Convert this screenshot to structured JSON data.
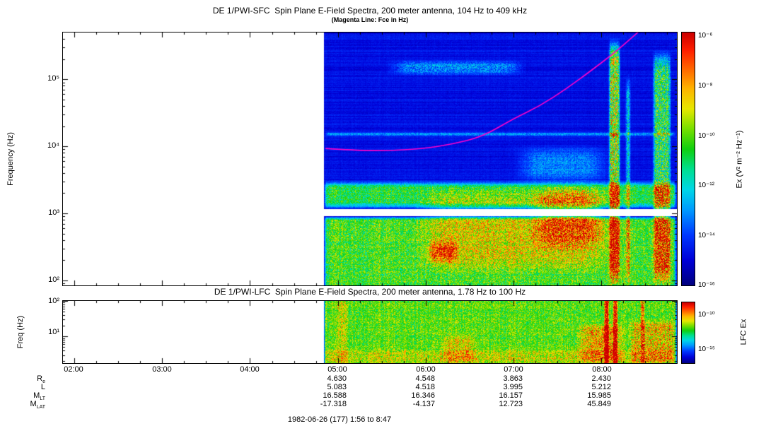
{
  "header": {
    "title": "DE 1/PWI-SFC  Spin Plane E-Field Spectra, 200 meter antenna, 104 Hz to 409 kHz",
    "subtitle": "(Magenta Line: Fce in Hz)"
  },
  "sfc": {
    "ylabel": "Frequency (Hz)",
    "yticks": [
      "10⁵",
      "10⁴",
      "10³",
      "10²"
    ],
    "colorbar": {
      "label": "Ex (V² m⁻² Hz⁻¹)",
      "ticks": [
        "10⁻⁶",
        "10⁻⁸",
        "10⁻¹⁰",
        "10⁻¹²",
        "10⁻¹⁴",
        "10⁻¹⁶"
      ]
    }
  },
  "lfc": {
    "title": "DE 1/PWI-LFC  Spin Plane E-Field Spectra, 200 meter antenna, 1.78 Hz to 100 Hz",
    "ylabel": "Freq (Hz)",
    "yticks": [
      "10²",
      "10¹"
    ],
    "colorbar": {
      "label": "LFC Ex",
      "ticks": [
        "10⁻¹⁰",
        "10⁻¹⁵"
      ]
    }
  },
  "xaxis": {
    "ticks": [
      "02:00",
      "03:00",
      "04:00",
      "05:00",
      "06:00",
      "07:00",
      "08:00"
    ]
  },
  "ephemeris": {
    "rows": [
      {
        "label_main": "R",
        "label_sub": "e",
        "values": [
          "4.630",
          "4.548",
          "3.863",
          "2.430"
        ]
      },
      {
        "label_main": "L",
        "label_sub": "",
        "values": [
          "5.083",
          "4.518",
          "3.995",
          "5.212"
        ]
      },
      {
        "label_main": "M",
        "label_sub": "LT",
        "values": [
          "16.588",
          "16.346",
          "16.157",
          "15.985"
        ]
      },
      {
        "label_main": "M",
        "label_sub": "LAT",
        "values": [
          "-17.318",
          "-4.137",
          "12.723",
          "45.849"
        ]
      }
    ]
  },
  "caption": "1982-06-26 (177) 1:56 to 8:47",
  "colormap": {
    "stops": [
      [
        0.0,
        "#00007d"
      ],
      [
        0.1,
        "#0000d8"
      ],
      [
        0.2,
        "#0038ff"
      ],
      [
        0.3,
        "#009cff"
      ],
      [
        0.38,
        "#00d8e8"
      ],
      [
        0.46,
        "#00e090"
      ],
      [
        0.54,
        "#10d010"
      ],
      [
        0.62,
        "#78e000"
      ],
      [
        0.7,
        "#e8e800"
      ],
      [
        0.78,
        "#ffb400"
      ],
      [
        0.86,
        "#ff6400"
      ],
      [
        0.93,
        "#ff2000"
      ],
      [
        1.0,
        "#cc0000"
      ]
    ]
  },
  "chart_data": [
    {
      "type": "heatmap",
      "panel": "SFC",
      "title": "DE 1/PWI-SFC  Spin Plane E-Field Spectra, 200 meter antenna, 104 Hz to 409 kHz",
      "subtitle": "(Magenta Line: Fce in Hz)",
      "x_axis": {
        "units": "UT hours",
        "tick_labels": [
          "02:00",
          "03:00",
          "04:00",
          "05:00",
          "06:00",
          "07:00",
          "08:00"
        ],
        "time_span_label": "1:56 to 8:47"
      },
      "y_axis": {
        "label": "Frequency (Hz)",
        "scale": "log",
        "ticks_hz": [
          100,
          1000,
          10000,
          100000
        ]
      },
      "z_axis": {
        "label": "Ex (V² m⁻² Hz⁻¹)",
        "scale": "log",
        "min": 1e-16,
        "max": 1e-06,
        "tick_labels": [
          "10⁻⁶",
          "10⁻⁸",
          "10⁻¹⁰",
          "10⁻¹²",
          "10⁻¹⁴",
          "10⁻¹⁶"
        ]
      },
      "x_range_hours": [
        1.87,
        8.86
      ],
      "y_range_hz": [
        84,
        500000
      ],
      "data_start_hour": 4.84,
      "white_gap_hz": [
        900,
        1150
      ],
      "base": 0.1,
      "base_noise": 0.05,
      "row_noise": 0.03,
      "overlay_line": {
        "name": "Fce",
        "color": "#ff00cc",
        "points": [
          [
            4.86,
            9300
          ],
          [
            5.2,
            8700
          ],
          [
            5.55,
            8600
          ],
          [
            5.95,
            9200
          ],
          [
            6.3,
            10700
          ],
          [
            6.65,
            14000
          ],
          [
            7.0,
            26000
          ],
          [
            7.3,
            40000
          ],
          [
            7.6,
            72000
          ],
          [
            7.9,
            140000
          ],
          [
            8.15,
            250000
          ],
          [
            8.33,
            400000
          ],
          [
            8.45,
            550000
          ]
        ]
      },
      "features": [
        {
          "t0": 4.84,
          "t1": 8.86,
          "f0": 75,
          "f1": 900,
          "amp": 0.44,
          "st": 0.04,
          "sf": 0.05,
          "speckle": 0.3
        },
        {
          "t0": 4.84,
          "t1": 8.86,
          "f0": 1150,
          "f1": 3100,
          "amp": 0.4,
          "st": 0.04,
          "sf": 0.1,
          "speckle": 0.3
        },
        {
          "t0": 5.85,
          "t1": 8.18,
          "f0": 120,
          "f1": 2600,
          "amp": 0.14,
          "st": 0.35,
          "sf": 0.25,
          "speckle": 0.3
        },
        {
          "t0": 7.15,
          "t1": 8.1,
          "f0": 260,
          "f1": 2900,
          "amp": 0.22,
          "st": 0.25,
          "sf": 0.25,
          "speckle": 0.5
        },
        {
          "t0": 6.02,
          "t1": 6.38,
          "f0": 170,
          "f1": 430,
          "amp": 0.26,
          "st": 0.08,
          "sf": 0.15,
          "speckle": 0.3
        },
        {
          "t0": 4.84,
          "t1": 8.86,
          "f0": 14000,
          "f1": 16500,
          "amp": 0.2,
          "st": 0.05,
          "sf": 0.03,
          "speckle": 0.4
        },
        {
          "t0": 5.55,
          "t1": 7.15,
          "f0": 110000,
          "f1": 200000,
          "amp": 0.17,
          "st": 0.25,
          "sf": 0.1,
          "speckle": 0.7
        },
        {
          "t0": 7.0,
          "t1": 8.12,
          "f0": 2600,
          "f1": 11000,
          "amp": 0.15,
          "st": 0.25,
          "sf": 0.2,
          "speckle": 0.5
        },
        {
          "t0": 8.08,
          "t1": 8.22,
          "f0": 80,
          "f1": 420000,
          "amp": 0.5,
          "st": 0.03,
          "sf": 0.3,
          "speckle": 0.55
        },
        {
          "t0": 8.27,
          "t1": 8.34,
          "f0": 80,
          "f1": 120000,
          "amp": 0.26,
          "st": 0.03,
          "sf": 0.3,
          "speckle": 0.6
        },
        {
          "t0": 8.58,
          "t1": 8.8,
          "f0": 80,
          "f1": 280000,
          "amp": 0.38,
          "st": 0.04,
          "sf": 0.3,
          "speckle": 0.6
        }
      ]
    },
    {
      "type": "heatmap",
      "panel": "LFC",
      "title": "DE 1/PWI-LFC  Spin Plane E-Field Spectra, 200 meter antenna, 1.78 Hz to 100 Hz",
      "x_axis": {
        "units": "UT hours",
        "tick_labels": [
          "02:00",
          "03:00",
          "04:00",
          "05:00",
          "06:00",
          "07:00",
          "08:00"
        ],
        "time_span_label": "1:56 to 8:47"
      },
      "y_axis": {
        "label": "Freq (Hz)",
        "scale": "log",
        "ticks_hz": [
          10,
          100
        ]
      },
      "z_axis": {
        "label": "LFC Ex",
        "scale": "log",
        "tick_labels": [
          "10⁻¹⁰",
          "10⁻¹⁵"
        ]
      },
      "x_range_hours": [
        1.87,
        8.86
      ],
      "y_range_hz": [
        1.78,
        100
      ],
      "data_start_hour": 4.84,
      "base": 0.1,
      "base_noise": 0.07,
      "row_noise": 0.02,
      "features": [
        {
          "t0": 4.84,
          "t1": 8.86,
          "f0": 1.6,
          "f1": 110,
          "amp": 0.45,
          "st": 0.02,
          "sf": 0.01,
          "speckle": 0.25
        },
        {
          "t0": 4.84,
          "t1": 8.86,
          "f0": 1.6,
          "f1": 4.5,
          "amp": 0.09,
          "st": 0.05,
          "sf": 0.1,
          "speckle": 0.4
        },
        {
          "t0": 6.15,
          "t1": 6.6,
          "f0": 1.6,
          "f1": 12,
          "amp": 0.12,
          "st": 0.1,
          "sf": 0.15,
          "speckle": 0.4
        },
        {
          "t0": 7.7,
          "t1": 8.28,
          "f0": 1.6,
          "f1": 25,
          "amp": 0.2,
          "st": 0.15,
          "sf": 0.2,
          "speckle": 0.5
        },
        {
          "t0": 8.03,
          "t1": 8.09,
          "f0": 1.6,
          "f1": 110,
          "amp": 0.48,
          "st": 0.015,
          "sf": 0.02,
          "speckle": 0.35
        },
        {
          "t0": 8.13,
          "t1": 8.19,
          "f0": 1.6,
          "f1": 110,
          "amp": 0.42,
          "st": 0.015,
          "sf": 0.02,
          "speckle": 0.35
        },
        {
          "t0": 8.3,
          "t1": 8.86,
          "f0": 1.6,
          "f1": 30,
          "amp": 0.16,
          "st": 0.08,
          "sf": 0.15,
          "speckle": 0.6
        },
        {
          "t0": 8.44,
          "t1": 8.5,
          "f0": 1.6,
          "f1": 110,
          "amp": 0.22,
          "st": 0.02,
          "sf": 0.02,
          "speckle": 0.5
        },
        {
          "t0": 4.98,
          "t1": 5.12,
          "f0": 1.6,
          "f1": 110,
          "amp": 0.1,
          "st": 0.03,
          "sf": 0.02,
          "speckle": 0.4
        }
      ]
    }
  ]
}
